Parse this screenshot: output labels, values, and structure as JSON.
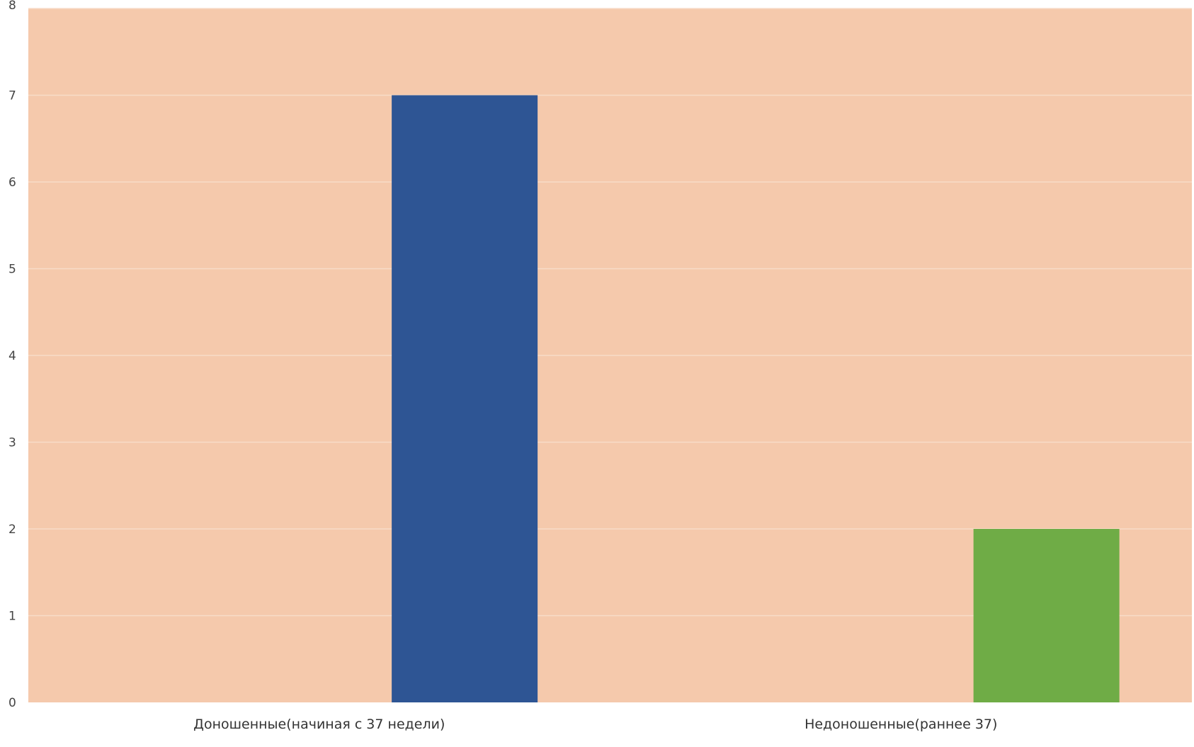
{
  "chart_data": {
    "type": "bar",
    "title": "",
    "xlabel": "",
    "ylabel": "",
    "categories": [
      "Доношенные(начиная с 37 недели)",
      "Недоношенные(раннее 37)"
    ],
    "values": [
      7,
      2
    ],
    "colors": [
      "#2e5594",
      "#6fac46"
    ],
    "ylim": [
      0,
      8
    ],
    "yticks": [
      0,
      1,
      2,
      3,
      4,
      5,
      6,
      7,
      8
    ],
    "plot_background": "#f5c9ac",
    "grid": true,
    "grid_color": "#f8dcc8",
    "legend": "none"
  }
}
